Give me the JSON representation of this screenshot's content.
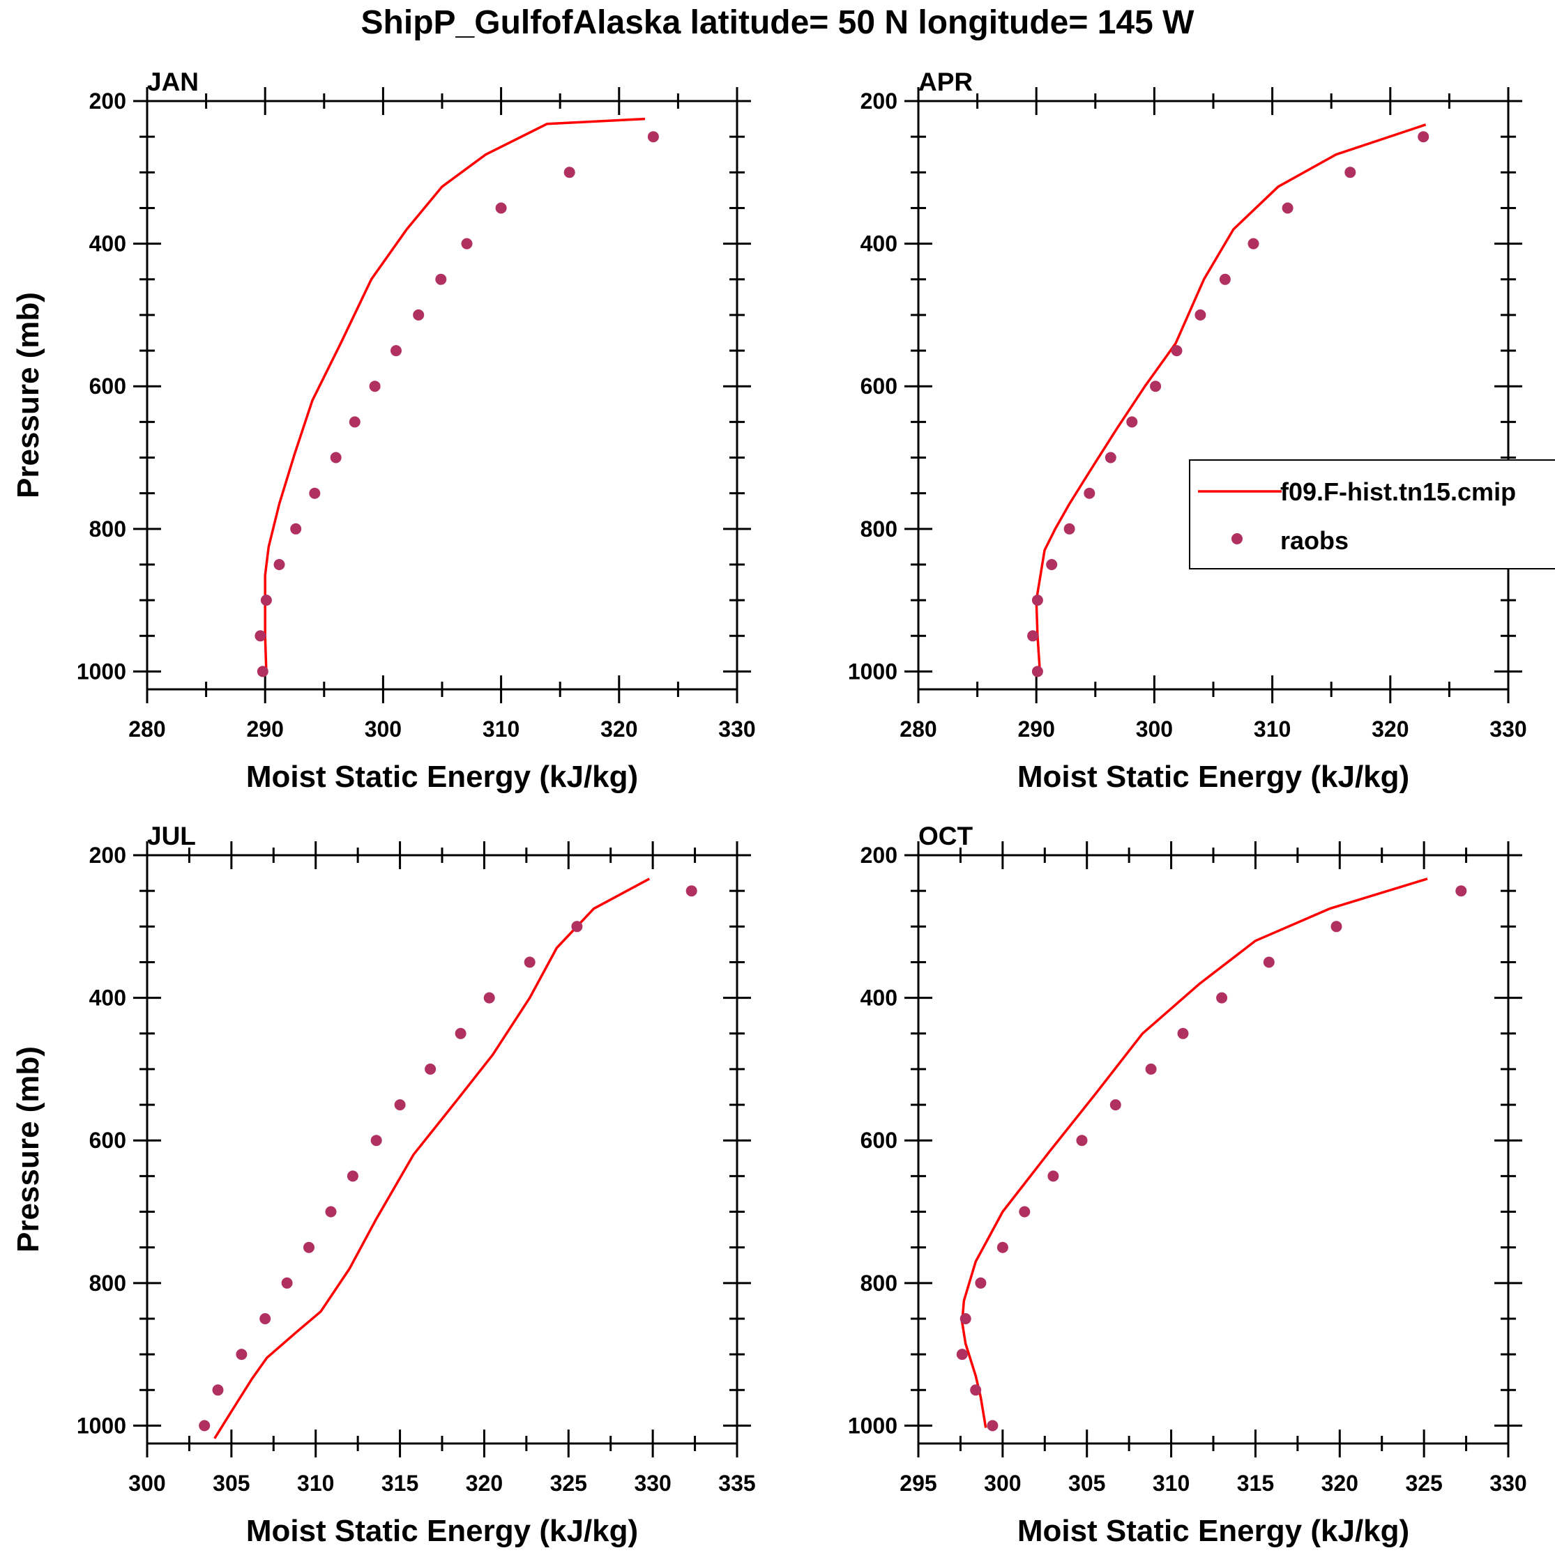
{
  "figure": {
    "title": "ShipP_GulfofAlaska  latitude= 50 N longitude= 145 W",
    "legend": {
      "model_label": "f09.F-hist.tn15.cmip",
      "obs_label": "raobs"
    },
    "colors": {
      "model": "#ff0000",
      "obs": "#b03060"
    }
  },
  "chart_data": [
    {
      "type": "line",
      "title": "JAN",
      "xlabel": "Moist Static Energy (kJ/kg)",
      "ylabel": "Pressure (mb)",
      "xlim": [
        280,
        330
      ],
      "ylim": [
        1025,
        200
      ],
      "xticks": [
        280,
        290,
        300,
        310,
        320,
        330
      ],
      "yticks": [
        200,
        400,
        600,
        800,
        1000
      ],
      "series": [
        {
          "name": "f09.F-hist.tn15.cmip",
          "style": "line",
          "x": [
            290.1,
            290.0,
            290.0,
            290.3,
            291.2,
            292.5,
            294.0,
            296.4,
            299.0,
            302.0,
            305.0,
            308.7,
            313.9,
            322.2
          ],
          "y": [
            1000,
            950,
            865,
            825,
            765,
            695,
            620,
            540,
            450,
            380,
            320,
            275,
            232,
            225
          ]
        },
        {
          "name": "raobs",
          "style": "markers",
          "x": [
            289.8,
            289.6,
            290.1,
            291.2,
            292.6,
            294.2,
            296.0,
            297.6,
            299.3,
            301.1,
            303.0,
            304.9,
            307.1,
            310.0,
            315.8,
            322.9
          ],
          "y": [
            1000,
            950,
            900,
            850,
            800,
            750,
            700,
            650,
            600,
            550,
            500,
            450,
            400,
            350,
            300,
            250
          ]
        }
      ]
    },
    {
      "type": "line",
      "title": "APR",
      "xlabel": "Moist Static Energy (kJ/kg)",
      "ylabel": "",
      "xlim": [
        280,
        330
      ],
      "ylim": [
        1025,
        200
      ],
      "xticks": [
        280,
        290,
        300,
        310,
        320,
        330
      ],
      "yticks": [
        200,
        400,
        600,
        800,
        1000
      ],
      "series": [
        {
          "name": "f09.F-hist.tn15.cmip",
          "style": "line",
          "x": [
            290.3,
            290.1,
            290.0,
            290.3,
            290.7,
            291.6,
            292.8,
            294.5,
            296.8,
            299.2,
            301.8,
            304.2,
            306.7,
            310.5,
            315.4,
            323.0
          ],
          "y": [
            1000,
            950,
            900,
            870,
            830,
            800,
            765,
            720,
            660,
            600,
            540,
            450,
            380,
            320,
            275,
            233
          ]
        },
        {
          "name": "raobs",
          "style": "markers",
          "x": [
            290.1,
            289.7,
            290.1,
            291.3,
            292.8,
            294.5,
            296.3,
            298.1,
            300.1,
            301.9,
            303.9,
            306.0,
            308.4,
            311.3,
            316.6,
            322.8
          ],
          "y": [
            1000,
            950,
            900,
            850,
            800,
            750,
            700,
            650,
            600,
            550,
            500,
            450,
            400,
            350,
            300,
            250
          ]
        }
      ]
    },
    {
      "type": "line",
      "title": "JUL",
      "xlabel": "Moist Static Energy (kJ/kg)",
      "ylabel": "Pressure (mb)",
      "xlim": [
        300,
        335
      ],
      "ylim": [
        1025,
        200
      ],
      "xticks": [
        300,
        305,
        310,
        315,
        320,
        325,
        330,
        335
      ],
      "yticks": [
        200,
        400,
        600,
        800,
        1000
      ],
      "series": [
        {
          "name": "f09.F-hist.tn15.cmip",
          "style": "line",
          "x": [
            304.0,
            305.0,
            306.2,
            307.1,
            308.8,
            310.3,
            312.0,
            313.6,
            315.8,
            318.5,
            320.5,
            322.7,
            324.3,
            326.5,
            329.8
          ],
          "y": [
            1018,
            980,
            935,
            905,
            870,
            840,
            780,
            710,
            620,
            540,
            480,
            400,
            330,
            275,
            233
          ]
        },
        {
          "name": "raobs",
          "style": "markers",
          "x": [
            303.4,
            304.2,
            305.6,
            307.0,
            308.3,
            309.6,
            310.9,
            312.2,
            313.6,
            315.0,
            316.8,
            318.6,
            320.3,
            322.7,
            325.5,
            332.3
          ],
          "y": [
            1000,
            950,
            900,
            850,
            800,
            750,
            700,
            650,
            600,
            550,
            500,
            450,
            400,
            350,
            300,
            250
          ]
        }
      ]
    },
    {
      "type": "line",
      "title": "OCT",
      "xlabel": "Moist Static Energy (kJ/kg)",
      "ylabel": "",
      "xlim": [
        295,
        330
      ],
      "ylim": [
        1025,
        200
      ],
      "xticks": [
        295,
        300,
        305,
        310,
        315,
        320,
        325,
        330
      ],
      "yticks": [
        200,
        400,
        600,
        800,
        1000
      ],
      "series": [
        {
          "name": "f09.F-hist.tn15.cmip",
          "style": "line",
          "x": [
            299.0,
            298.7,
            298.4,
            297.8,
            297.6,
            297.7,
            298.4,
            300.0,
            302.8,
            305.5,
            308.3,
            311.7,
            315.0,
            319.4,
            325.2
          ],
          "y": [
            1003,
            960,
            930,
            885,
            855,
            825,
            770,
            700,
            615,
            535,
            450,
            380,
            320,
            275,
            233
          ]
        },
        {
          "name": "raobs",
          "style": "markers",
          "x": [
            299.4,
            298.4,
            297.6,
            297.8,
            298.7,
            300.0,
            301.3,
            303.0,
            304.7,
            306.7,
            308.8,
            310.7,
            313.0,
            315.8,
            319.8,
            327.2
          ],
          "y": [
            1000,
            950,
            900,
            850,
            800,
            750,
            700,
            650,
            600,
            550,
            500,
            450,
            400,
            350,
            300,
            250
          ]
        }
      ]
    }
  ]
}
